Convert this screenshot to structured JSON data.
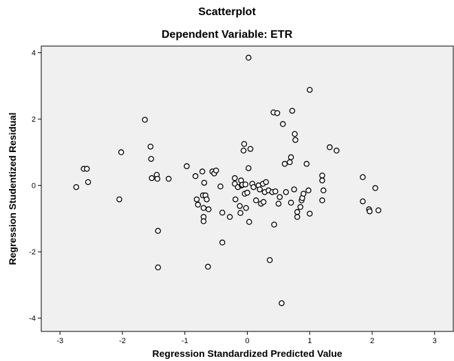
{
  "chart_data": {
    "type": "scatter",
    "title": "Scatterplot",
    "subtitle": "Dependent Variable: ETR",
    "xlabel": "Regression Standardized Predicted Value",
    "ylabel": "Regression Studentized Residual",
    "xlim": [
      -3.3,
      3.3
    ],
    "ylim": [
      -4.4,
      4.2
    ],
    "xticks": [
      -3,
      -2,
      -1,
      0,
      1,
      2,
      3
    ],
    "yticks": [
      -4,
      -2,
      0,
      2,
      4
    ],
    "grid": false,
    "plot_background": "#f0f0f0",
    "marker_stroke": "#000000",
    "marker_fill": "#ffffff",
    "points": [
      [
        -2.74,
        -0.05
      ],
      [
        -2.62,
        0.5
      ],
      [
        -2.57,
        0.5
      ],
      [
        -2.55,
        0.1
      ],
      [
        -2.05,
        -0.42
      ],
      [
        -2.02,
        1.0
      ],
      [
        -1.64,
        1.98
      ],
      [
        -1.55,
        1.17
      ],
      [
        -1.54,
        0.8
      ],
      [
        -1.53,
        0.22
      ],
      [
        -1.45,
        0.32
      ],
      [
        -1.44,
        0.2
      ],
      [
        -1.43,
        -1.37
      ],
      [
        -1.43,
        -2.47
      ],
      [
        -1.26,
        0.2
      ],
      [
        -0.97,
        0.58
      ],
      [
        -0.83,
        0.28
      ],
      [
        -0.81,
        -0.42
      ],
      [
        -0.79,
        -0.58
      ],
      [
        -0.72,
        0.42
      ],
      [
        -0.71,
        -0.3
      ],
      [
        -0.7,
        -0.68
      ],
      [
        -0.7,
        -0.95
      ],
      [
        -0.7,
        -1.08
      ],
      [
        -0.69,
        0.08
      ],
      [
        -0.67,
        -0.3
      ],
      [
        -0.65,
        -0.42
      ],
      [
        -0.63,
        -2.45
      ],
      [
        -0.62,
        -0.72
      ],
      [
        -0.56,
        0.42
      ],
      [
        -0.53,
        0.36
      ],
      [
        -0.5,
        0.45
      ],
      [
        -0.43,
        -0.03
      ],
      [
        -0.4,
        -0.82
      ],
      [
        -0.4,
        -1.72
      ],
      [
        -0.28,
        -0.95
      ],
      [
        -0.2,
        0.22
      ],
      [
        -0.2,
        0.05
      ],
      [
        -0.19,
        -0.42
      ],
      [
        -0.15,
        -0.05
      ],
      [
        -0.12,
        -0.62
      ],
      [
        -0.11,
        -0.83
      ],
      [
        -0.1,
        0.15
      ],
      [
        -0.09,
        0.0
      ],
      [
        -0.08,
        0.02
      ],
      [
        -0.06,
        1.05
      ],
      [
        -0.05,
        1.25
      ],
      [
        -0.04,
        -0.25
      ],
      [
        -0.03,
        0.03
      ],
      [
        -0.02,
        -0.68
      ],
      [
        0.0,
        -0.22
      ],
      [
        0.02,
        3.85
      ],
      [
        0.02,
        0.52
      ],
      [
        0.03,
        -1.1
      ],
      [
        0.05,
        1.1
      ],
      [
        0.08,
        0.05
      ],
      [
        0.1,
        -0.05
      ],
      [
        0.14,
        -0.45
      ],
      [
        0.18,
        0.0
      ],
      [
        0.2,
        -0.12
      ],
      [
        0.22,
        -0.55
      ],
      [
        0.25,
        0.05
      ],
      [
        0.26,
        -0.5
      ],
      [
        0.28,
        -0.2
      ],
      [
        0.3,
        0.1
      ],
      [
        0.34,
        -0.15
      ],
      [
        0.36,
        -2.25
      ],
      [
        0.4,
        -0.2
      ],
      [
        0.42,
        2.2
      ],
      [
        0.43,
        -1.18
      ],
      [
        0.45,
        -0.18
      ],
      [
        0.48,
        2.18
      ],
      [
        0.5,
        -0.55
      ],
      [
        0.52,
        -0.35
      ],
      [
        0.55,
        -3.55
      ],
      [
        0.57,
        1.85
      ],
      [
        0.6,
        0.65
      ],
      [
        0.62,
        -0.2
      ],
      [
        0.68,
        0.7
      ],
      [
        0.7,
        0.85
      ],
      [
        0.7,
        -0.52
      ],
      [
        0.72,
        2.25
      ],
      [
        0.75,
        -0.12
      ],
      [
        0.76,
        1.55
      ],
      [
        0.77,
        1.37
      ],
      [
        0.8,
        -0.8
      ],
      [
        0.8,
        -0.95
      ],
      [
        0.85,
        -0.65
      ],
      [
        0.87,
        -0.45
      ],
      [
        0.88,
        -0.38
      ],
      [
        0.9,
        -0.25
      ],
      [
        0.95,
        0.65
      ],
      [
        0.98,
        -0.15
      ],
      [
        1.0,
        2.88
      ],
      [
        1.0,
        -0.85
      ],
      [
        1.2,
        0.3
      ],
      [
        1.2,
        0.15
      ],
      [
        1.2,
        -0.45
      ],
      [
        1.22,
        -0.15
      ],
      [
        1.32,
        1.15
      ],
      [
        1.43,
        1.05
      ],
      [
        1.85,
        0.25
      ],
      [
        1.85,
        -0.48
      ],
      [
        1.95,
        -0.72
      ],
      [
        1.96,
        -0.78
      ],
      [
        2.05,
        -0.08
      ],
      [
        2.1,
        -0.75
      ]
    ]
  }
}
